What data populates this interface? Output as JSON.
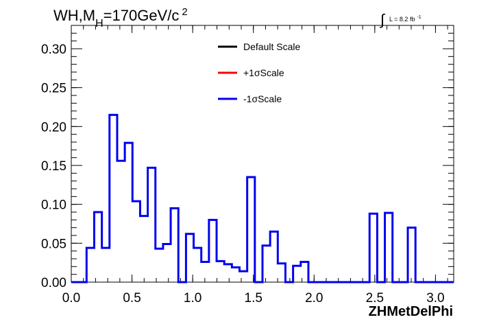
{
  "title": {
    "main": "WH,M",
    "sub": "H",
    "rest": "=170GeV/c",
    "sup": "2"
  },
  "luminosity": {
    "integral_symbol": "∫",
    "text": "L = 8.2 fb",
    "sup": "-1"
  },
  "legend": [
    {
      "label": "Default Scale",
      "color": "#000000"
    },
    {
      "label": "+1σScale",
      "color": "#ff0000"
    },
    {
      "label": "-1σScale",
      "color": "#0000ee"
    }
  ],
  "chart_data": {
    "type": "histogram",
    "xlabel": "ZHMetDelPhi",
    "ylabel": "",
    "xlim": [
      0,
      3.15
    ],
    "ylim": [
      0,
      0.33
    ],
    "x_ticks": [
      "0.0",
      "0.5",
      "1.0",
      "1.5",
      "2.0",
      "2.5",
      "3.0"
    ],
    "y_ticks": [
      "0.00",
      "0.05",
      "0.10",
      "0.15",
      "0.20",
      "0.25",
      "0.30"
    ],
    "bin_width": 0.063,
    "bin_edges_start": 0,
    "bin_values": [
      0,
      0,
      0.044,
      0.09,
      0.044,
      0.215,
      0.156,
      0.179,
      0.104,
      0.085,
      0.147,
      0.043,
      0.049,
      0.095,
      0,
      0.062,
      0.044,
      0.026,
      0.08,
      0.027,
      0.023,
      0.019,
      0.014,
      0.135,
      0,
      0.047,
      0.065,
      0.024,
      0,
      0.021,
      0.026,
      0,
      0,
      0,
      0,
      0,
      0,
      0,
      0,
      0.088,
      0,
      0.089,
      0,
      0,
      0.07,
      0,
      0,
      0,
      0,
      0
    ],
    "series_drawn_color": "#0000ee",
    "series_note_visible": "-1σScale"
  }
}
